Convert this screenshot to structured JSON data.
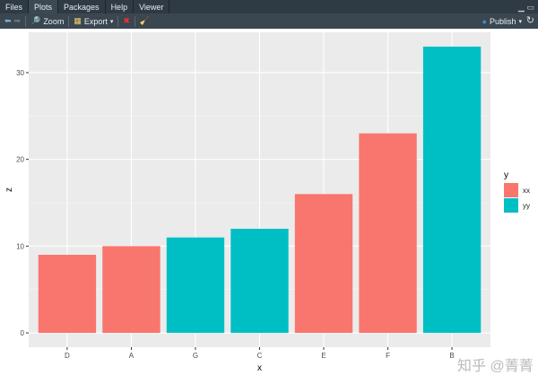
{
  "tabs": [
    "Files",
    "Plots",
    "Packages",
    "Help",
    "Viewer"
  ],
  "active_tab": "Plots",
  "toolbar": {
    "zoom": "Zoom",
    "export": "Export",
    "publish": "Publish"
  },
  "chart_data": {
    "type": "bar",
    "categories": [
      "D",
      "A",
      "G",
      "C",
      "E",
      "F",
      "B"
    ],
    "values": [
      9,
      10,
      11,
      12,
      16,
      23,
      33
    ],
    "groups": [
      "xx",
      "xx",
      "yy",
      "yy",
      "xx",
      "xx",
      "yy"
    ],
    "xlabel": "x",
    "ylabel": "z",
    "ylim": [
      -1.65,
      34.65
    ],
    "yticks": [
      0,
      10,
      20,
      30
    ],
    "grid": true,
    "legend": {
      "title": "y",
      "placement": "right",
      "entries": [
        {
          "label": "xx",
          "color": "#F8766D"
        },
        {
          "label": "yy",
          "color": "#00BFC4"
        }
      ]
    }
  },
  "watermark": "知乎 @菁菁"
}
